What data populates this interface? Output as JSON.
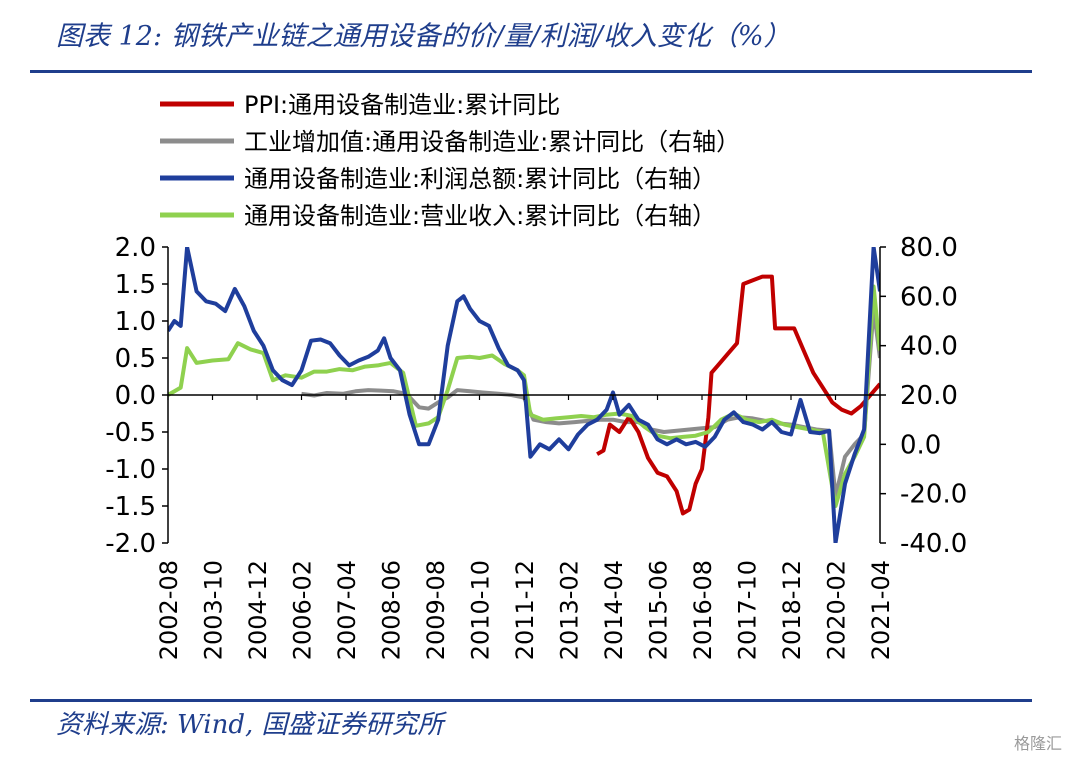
{
  "page": {
    "title": "图表 12: 钢铁产业链之通用设备的价/量/利润/收入变化（%）",
    "source": "资料来源: Wind, 国盛证券研究所",
    "watermark": "格隆汇"
  },
  "chart_data": {
    "type": "line",
    "title": "",
    "xlabel": "",
    "ylabel": "",
    "ylim_left": [
      -2.0,
      2.0
    ],
    "ylim_right": [
      -40.0,
      80.0
    ],
    "yticks_left": [
      "2.0",
      "1.5",
      "1.0",
      "0.5",
      "0.0",
      "-0.5",
      "-1.0",
      "-1.5",
      "-2.0"
    ],
    "yticks_right": [
      "80.0",
      "60.0",
      "40.0",
      "20.0",
      "0.0",
      "-20.0",
      "-40.0"
    ],
    "x_ticks": [
      "2002-08",
      "2003-10",
      "2004-12",
      "2006-02",
      "2007-04",
      "2008-06",
      "2009-08",
      "2010-10",
      "2011-12",
      "2013-02",
      "2014-04",
      "2015-06",
      "2016-08",
      "2017-10",
      "2018-12",
      "2020-02",
      "2021-04"
    ],
    "x_range": [
      "2002-08",
      "2021-04"
    ],
    "grid": false,
    "legend_position": "top",
    "series": [
      {
        "name": "PPI:通用设备制造业:累计同比",
        "axis": "left",
        "color": "#c00000",
        "points": [
          [
            "2013-11",
            -0.8
          ],
          [
            "2014-01",
            -0.75
          ],
          [
            "2014-03",
            -0.4
          ],
          [
            "2014-06",
            -0.5
          ],
          [
            "2014-09",
            -0.3
          ],
          [
            "2014-12",
            -0.5
          ],
          [
            "2015-03",
            -0.85
          ],
          [
            "2015-06",
            -1.05
          ],
          [
            "2015-09",
            -1.1
          ],
          [
            "2015-12",
            -1.3
          ],
          [
            "2016-02",
            -1.6
          ],
          [
            "2016-04",
            -1.55
          ],
          [
            "2016-06",
            -1.2
          ],
          [
            "2016-08",
            -1.0
          ],
          [
            "2016-10",
            -0.3
          ],
          [
            "2016-11",
            0.3
          ],
          [
            "2017-01",
            0.4
          ],
          [
            "2017-04",
            0.55
          ],
          [
            "2017-07",
            0.7
          ],
          [
            "2017-09",
            1.5
          ],
          [
            "2017-12",
            1.55
          ],
          [
            "2018-03",
            1.6
          ],
          [
            "2018-06",
            1.6
          ],
          [
            "2018-07",
            0.9
          ],
          [
            "2018-10",
            0.9
          ],
          [
            "2019-01",
            0.9
          ],
          [
            "2019-04",
            0.6
          ],
          [
            "2019-07",
            0.3
          ],
          [
            "2019-10",
            0.1
          ],
          [
            "2020-01",
            -0.1
          ],
          [
            "2020-04",
            -0.2
          ],
          [
            "2020-07",
            -0.25
          ],
          [
            "2020-10",
            -0.15
          ],
          [
            "2021-01",
            0.0
          ],
          [
            "2021-04",
            0.15
          ]
        ]
      },
      {
        "name": "工业增加值:通用设备制造业:累计同比（右轴）",
        "axis": "right",
        "color": "#8c8c8c",
        "points": [
          [
            "2006-02",
            20.5
          ],
          [
            "2006-06",
            19.8
          ],
          [
            "2006-10",
            20.8
          ],
          [
            "2007-03",
            20.5
          ],
          [
            "2007-07",
            21.5
          ],
          [
            "2007-11",
            22.0
          ],
          [
            "2008-03",
            21.8
          ],
          [
            "2008-07",
            21.5
          ],
          [
            "2008-11",
            20.5
          ],
          [
            "2009-03",
            15.0
          ],
          [
            "2009-06",
            14.5
          ],
          [
            "2009-09",
            17.0
          ],
          [
            "2009-12",
            19.0
          ],
          [
            "2010-03",
            22.0
          ],
          [
            "2010-07",
            21.5
          ],
          [
            "2010-11",
            21.0
          ],
          [
            "2011-04",
            20.5
          ],
          [
            "2011-08",
            20.0
          ],
          [
            "2011-12",
            19.0
          ],
          [
            "2012-03",
            10.0
          ],
          [
            "2012-07",
            9.0
          ],
          [
            "2012-11",
            8.5
          ],
          [
            "2013-04",
            9.0
          ],
          [
            "2013-08",
            9.5
          ],
          [
            "2013-12",
            10.0
          ],
          [
            "2014-04",
            10.0
          ],
          [
            "2014-08",
            9.0
          ],
          [
            "2014-12",
            9.0
          ],
          [
            "2015-04",
            6.0
          ],
          [
            "2015-08",
            5.0
          ],
          [
            "2015-12",
            5.5
          ],
          [
            "2016-04",
            6.0
          ],
          [
            "2016-08",
            6.5
          ],
          [
            "2016-12",
            7.0
          ],
          [
            "2017-04",
            10.0
          ],
          [
            "2017-08",
            11.0
          ],
          [
            "2017-12",
            10.5
          ],
          [
            "2018-04",
            9.5
          ],
          [
            "2018-08",
            8.5
          ],
          [
            "2018-12",
            8.0
          ],
          [
            "2019-04",
            7.0
          ],
          [
            "2019-08",
            6.0
          ],
          [
            "2019-12",
            5.5
          ],
          [
            "2020-02",
            -21.0
          ],
          [
            "2020-05",
            -5.0
          ],
          [
            "2020-08",
            0.0
          ],
          [
            "2020-11",
            4.0
          ],
          [
            "2021-02",
            55.0
          ],
          [
            "2021-04",
            35.0
          ]
        ]
      },
      {
        "name": "通用设备制造业:利润总额:累计同比（右轴）",
        "axis": "right",
        "color": "#1f3e9c",
        "points": [
          [
            "2002-08",
            46.0
          ],
          [
            "2002-10",
            50.0
          ],
          [
            "2002-12",
            48.0
          ],
          [
            "2003-02",
            80.0
          ],
          [
            "2003-05",
            62.0
          ],
          [
            "2003-08",
            58.0
          ],
          [
            "2003-11",
            57.0
          ],
          [
            "2004-02",
            54.0
          ],
          [
            "2004-05",
            63.0
          ],
          [
            "2004-08",
            56.0
          ],
          [
            "2004-11",
            46.0
          ],
          [
            "2005-02",
            40.0
          ],
          [
            "2005-05",
            30.0
          ],
          [
            "2005-08",
            26.0
          ],
          [
            "2005-11",
            24.0
          ],
          [
            "2006-02",
            30.0
          ],
          [
            "2006-05",
            42.0
          ],
          [
            "2006-08",
            42.5
          ],
          [
            "2006-11",
            41.0
          ],
          [
            "2007-02",
            36.0
          ],
          [
            "2007-05",
            32.0
          ],
          [
            "2007-08",
            34.0
          ],
          [
            "2007-11",
            35.5
          ],
          [
            "2008-02",
            38.0
          ],
          [
            "2008-04",
            43.0
          ],
          [
            "2008-06",
            35.0
          ],
          [
            "2008-09",
            30.0
          ],
          [
            "2008-12",
            12.0
          ],
          [
            "2009-03",
            0.0
          ],
          [
            "2009-06",
            0.0
          ],
          [
            "2009-09",
            10.0
          ],
          [
            "2009-12",
            40.0
          ],
          [
            "2010-03",
            58.0
          ],
          [
            "2010-05",
            60.0
          ],
          [
            "2010-07",
            55.0
          ],
          [
            "2010-10",
            50.0
          ],
          [
            "2011-01",
            48.0
          ],
          [
            "2011-04",
            39.0
          ],
          [
            "2011-07",
            32.0
          ],
          [
            "2011-10",
            30.0
          ],
          [
            "2011-12",
            26.0
          ],
          [
            "2012-02",
            -5.0
          ],
          [
            "2012-05",
            0.0
          ],
          [
            "2012-08",
            -2.0
          ],
          [
            "2012-11",
            2.0
          ],
          [
            "2013-02",
            -2.0
          ],
          [
            "2013-05",
            4.0
          ],
          [
            "2013-08",
            8.0
          ],
          [
            "2013-11",
            10.0
          ],
          [
            "2014-02",
            14.0
          ],
          [
            "2014-04",
            21.0
          ],
          [
            "2014-06",
            12.0
          ],
          [
            "2014-09",
            16.0
          ],
          [
            "2014-12",
            10.0
          ],
          [
            "2015-03",
            8.0
          ],
          [
            "2015-06",
            2.0
          ],
          [
            "2015-09",
            0.0
          ],
          [
            "2015-12",
            2.0
          ],
          [
            "2016-03",
            0.0
          ],
          [
            "2016-06",
            1.0
          ],
          [
            "2016-09",
            -1.0
          ],
          [
            "2016-12",
            3.0
          ],
          [
            "2017-03",
            10.0
          ],
          [
            "2017-06",
            13.0
          ],
          [
            "2017-09",
            9.0
          ],
          [
            "2017-12",
            8.0
          ],
          [
            "2018-03",
            6.0
          ],
          [
            "2018-06",
            9.0
          ],
          [
            "2018-09",
            5.0
          ],
          [
            "2018-12",
            4.0
          ],
          [
            "2019-03",
            18.0
          ],
          [
            "2019-06",
            5.0
          ],
          [
            "2019-09",
            4.5
          ],
          [
            "2019-12",
            5.5
          ],
          [
            "2020-02",
            -40.0
          ],
          [
            "2020-05",
            -16.0
          ],
          [
            "2020-08",
            -4.0
          ],
          [
            "2020-11",
            6.0
          ],
          [
            "2021-02",
            80.0
          ],
          [
            "2021-04",
            62.0
          ]
        ]
      },
      {
        "name": "通用设备制造业:营业收入:累计同比（右轴）",
        "axis": "right",
        "color": "#8fd14f",
        "points": [
          [
            "2002-08",
            20.0
          ],
          [
            "2002-12",
            23.0
          ],
          [
            "2003-02",
            39.0
          ],
          [
            "2003-05",
            33.0
          ],
          [
            "2003-10",
            34.0
          ],
          [
            "2004-03",
            34.5
          ],
          [
            "2004-06",
            41.0
          ],
          [
            "2004-10",
            38.5
          ],
          [
            "2005-02",
            37.0
          ],
          [
            "2005-05",
            26.0
          ],
          [
            "2005-09",
            28.0
          ],
          [
            "2006-02",
            27.0
          ],
          [
            "2006-06",
            29.5
          ],
          [
            "2006-10",
            29.5
          ],
          [
            "2007-02",
            30.5
          ],
          [
            "2007-06",
            30.0
          ],
          [
            "2007-10",
            31.5
          ],
          [
            "2008-02",
            32.0
          ],
          [
            "2008-06",
            33.0
          ],
          [
            "2008-10",
            29.0
          ],
          [
            "2009-02",
            7.5
          ],
          [
            "2009-06",
            8.5
          ],
          [
            "2009-09",
            11.0
          ],
          [
            "2009-12",
            22.0
          ],
          [
            "2010-03",
            35.0
          ],
          [
            "2010-07",
            35.5
          ],
          [
            "2010-10",
            35.0
          ],
          [
            "2011-02",
            36.0
          ],
          [
            "2011-06",
            32.5
          ],
          [
            "2011-10",
            30.0
          ],
          [
            "2011-12",
            28.0
          ],
          [
            "2012-02",
            12.0
          ],
          [
            "2012-06",
            10.0
          ],
          [
            "2012-10",
            10.5
          ],
          [
            "2013-02",
            11.0
          ],
          [
            "2013-06",
            11.5
          ],
          [
            "2013-10",
            11.0
          ],
          [
            "2014-02",
            12.0
          ],
          [
            "2014-06",
            12.5
          ],
          [
            "2014-10",
            11.5
          ],
          [
            "2015-02",
            7.0
          ],
          [
            "2015-06",
            3.5
          ],
          [
            "2015-10",
            2.5
          ],
          [
            "2016-02",
            3.0
          ],
          [
            "2016-06",
            3.5
          ],
          [
            "2016-10",
            5.0
          ],
          [
            "2017-02",
            10.0
          ],
          [
            "2017-06",
            12.5
          ],
          [
            "2017-10",
            10.0
          ],
          [
            "2018-02",
            9.0
          ],
          [
            "2018-06",
            10.0
          ],
          [
            "2018-10",
            8.0
          ],
          [
            "2019-02",
            7.0
          ],
          [
            "2019-06",
            6.0
          ],
          [
            "2019-10",
            5.0
          ],
          [
            "2020-02",
            -25.0
          ],
          [
            "2020-05",
            -12.0
          ],
          [
            "2020-08",
            -5.0
          ],
          [
            "2020-11",
            3.0
          ],
          [
            "2021-02",
            64.0
          ],
          [
            "2021-04",
            38.0
          ]
        ]
      }
    ]
  }
}
